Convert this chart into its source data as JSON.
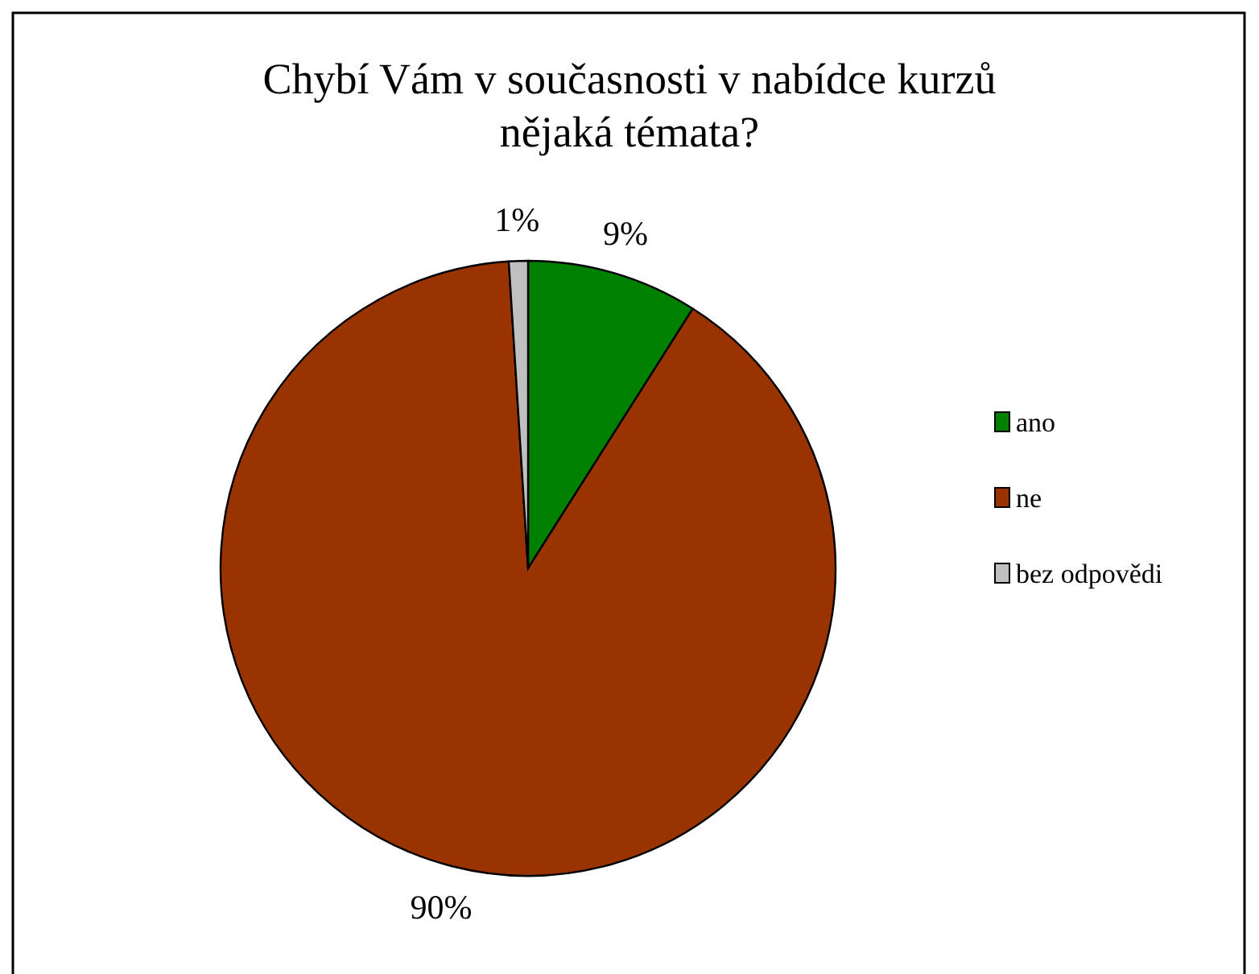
{
  "chart_data": {
    "type": "pie",
    "title": "Chybí Vám v současnosti v nabídce kurzů nějaká témata?",
    "categories": [
      "ano",
      "ne",
      "bez odpovědi"
    ],
    "values": [
      9,
      90,
      1
    ],
    "colors": [
      "#008000",
      "#993300",
      "#c0c0c0"
    ],
    "value_labels": [
      "9%",
      "90%",
      "1%"
    ],
    "legend": "right"
  }
}
